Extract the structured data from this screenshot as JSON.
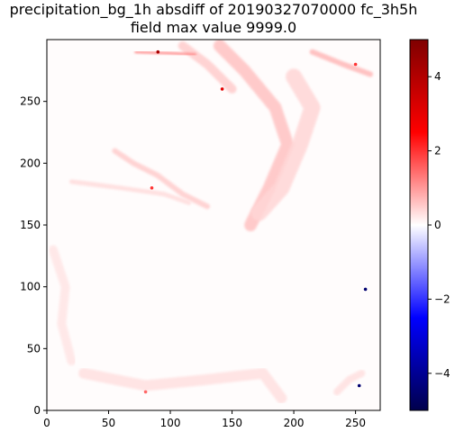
{
  "chart_data": {
    "type": "heatmap",
    "title": "precipitation_bg_1h absdiff of 20190327070000 fc_3h5h",
    "subtitle": "field max value 9999.0",
    "xlabel": "",
    "ylabel": "",
    "xlim": [
      0,
      270
    ],
    "ylim": [
      0,
      300
    ],
    "xticks": [
      0,
      50,
      100,
      150,
      200,
      250
    ],
    "yticks": [
      0,
      50,
      100,
      150,
      200,
      250
    ],
    "grid": false,
    "colorbar": {
      "colormap": "seismic",
      "range": [
        -5,
        5
      ],
      "ticks": [
        -4,
        -2,
        0,
        2,
        4
      ],
      "tick_labels": [
        "−4",
        "−2",
        "0",
        "2",
        "4"
      ],
      "colors": [
        "#00004c",
        "#0000ff",
        "#ffffff",
        "#ff0000",
        "#7f0000"
      ]
    },
    "features": [
      {
        "kind": "band",
        "points": [
          [
            140,
            295
          ],
          [
            160,
            275
          ],
          [
            185,
            245
          ],
          [
            195,
            215
          ],
          [
            180,
            180
          ],
          [
            165,
            150
          ]
        ],
        "value": 0.6,
        "width": 14
      },
      {
        "kind": "band",
        "points": [
          [
            200,
            270
          ],
          [
            215,
            245
          ],
          [
            205,
            215
          ],
          [
            190,
            180
          ],
          [
            172,
            160
          ]
        ],
        "value": 0.4,
        "width": 18
      },
      {
        "kind": "band",
        "points": [
          [
            110,
            295
          ],
          [
            130,
            280
          ],
          [
            150,
            260
          ]
        ],
        "value": 0.5,
        "width": 10
      },
      {
        "kind": "band",
        "points": [
          [
            55,
            210
          ],
          [
            70,
            200
          ],
          [
            90,
            190
          ],
          [
            110,
            175
          ],
          [
            130,
            165
          ]
        ],
        "value": 0.5,
        "width": 6
      },
      {
        "kind": "band",
        "points": [
          [
            20,
            185
          ],
          [
            60,
            180
          ],
          [
            95,
            175
          ],
          [
            115,
            168
          ]
        ],
        "value": 0.35,
        "width": 5
      },
      {
        "kind": "band",
        "points": [
          [
            215,
            290
          ],
          [
            240,
            280
          ],
          [
            262,
            272
          ]
        ],
        "value": 0.7,
        "width": 6
      },
      {
        "kind": "band",
        "points": [
          [
            72,
            290
          ],
          [
            100,
            289
          ],
          [
            120,
            288
          ]
        ],
        "value": 1.2,
        "width": 3
      },
      {
        "kind": "band",
        "points": [
          [
            5,
            130
          ],
          [
            15,
            100
          ],
          [
            12,
            70
          ],
          [
            20,
            40
          ]
        ],
        "value": 0.25,
        "width": 10
      },
      {
        "kind": "band",
        "points": [
          [
            30,
            30
          ],
          [
            80,
            20
          ],
          [
            130,
            25
          ],
          [
            175,
            30
          ],
          [
            190,
            10
          ]
        ],
        "value": 0.3,
        "width": 12
      },
      {
        "kind": "band",
        "points": [
          [
            235,
            15
          ],
          [
            245,
            25
          ],
          [
            255,
            30
          ]
        ],
        "value": 0.3,
        "width": 8
      },
      {
        "kind": "blob",
        "x": 90,
        "y": 290,
        "value": 4.2
      },
      {
        "kind": "blob",
        "x": 142,
        "y": 260,
        "value": 3.0
      },
      {
        "kind": "blob",
        "x": 85,
        "y": 180,
        "value": 2.0
      },
      {
        "kind": "blob",
        "x": 250,
        "y": 280,
        "value": 2.0
      },
      {
        "kind": "blob",
        "x": 80,
        "y": 15,
        "value": 1.5
      },
      {
        "kind": "blob",
        "x": 253,
        "y": 20,
        "value": -4.5
      },
      {
        "kind": "blob",
        "x": 258,
        "y": 98,
        "value": -4.5
      }
    ]
  }
}
